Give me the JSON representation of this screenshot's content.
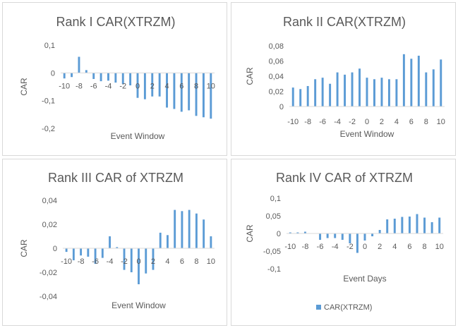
{
  "chart_data": [
    {
      "type": "bar",
      "title": "Rank I CAR(XTRZM)",
      "xlabel": "Event Window",
      "ylabel": "CAR",
      "ylim": [
        -0.2,
        0.1
      ],
      "yticks": [
        0.1,
        0,
        -0.1,
        -0.2
      ],
      "ytick_labels": [
        "0,1",
        "0",
        "-0,1",
        "-0,2"
      ],
      "xtick_labels": [
        "-10",
        "-8",
        "-6",
        "-4",
        "-2",
        "0",
        "2",
        "4",
        "6",
        "8",
        "10"
      ],
      "color": "#5b9bd5",
      "x": [
        -10,
        -9,
        -8,
        -7,
        -6,
        -5,
        -4,
        -3,
        -2,
        -1,
        0,
        1,
        2,
        3,
        4,
        5,
        6,
        7,
        8,
        9,
        10
      ],
      "values": [
        -0.02,
        -0.015,
        0.058,
        0.01,
        -0.022,
        -0.03,
        -0.028,
        -0.035,
        -0.04,
        -0.045,
        -0.09,
        -0.095,
        -0.085,
        -0.085,
        -0.125,
        -0.13,
        -0.14,
        -0.135,
        -0.155,
        -0.16,
        -0.165
      ]
    },
    {
      "type": "bar",
      "title": "Rank II CAR(XTRZM)",
      "xlabel": "Event Window",
      "ylabel": "CAR",
      "ylim": [
        0,
        0.08
      ],
      "yticks": [
        0.08,
        0.06,
        0.04,
        0.02,
        0
      ],
      "ytick_labels": [
        "0,08",
        "0,06",
        "0,04",
        "0,02",
        "0"
      ],
      "xtick_labels": [
        "-10",
        "-8",
        "-6",
        "-4",
        "-2",
        "0",
        "2",
        "4",
        "6",
        "8",
        "10"
      ],
      "color": "#5b9bd5",
      "x": [
        -10,
        -9,
        -8,
        -7,
        -6,
        -5,
        -4,
        -3,
        -2,
        -1,
        0,
        1,
        2,
        3,
        4,
        5,
        6,
        7,
        8,
        9,
        10
      ],
      "values": [
        0.025,
        0.023,
        0.027,
        0.036,
        0.038,
        0.03,
        0.045,
        0.042,
        0.045,
        0.05,
        0.038,
        0.036,
        0.038,
        0.036,
        0.036,
        0.069,
        0.063,
        0.067,
        0.045,
        0.049,
        0.062
      ]
    },
    {
      "type": "bar",
      "title": "Rank III CAR of XTRZM",
      "xlabel": "Event Window",
      "ylabel": "CAR",
      "ylim": [
        -0.04,
        0.04
      ],
      "yticks": [
        0.04,
        0.02,
        0,
        -0.02,
        -0.04
      ],
      "ytick_labels": [
        "0,04",
        "0,02",
        "0",
        "-0,02",
        "-0,04"
      ],
      "xtick_labels": [
        "-10",
        "-8",
        "-6",
        "-4",
        "-2",
        "0",
        "2",
        "4",
        "6",
        "8",
        "10"
      ],
      "color": "#5b9bd5",
      "x": [
        -10,
        -9,
        -8,
        -7,
        -6,
        -5,
        -4,
        -3,
        -2,
        -1,
        0,
        1,
        2,
        3,
        4,
        5,
        6,
        7,
        8,
        9,
        10
      ],
      "values": [
        -0.003,
        -0.01,
        -0.006,
        -0.007,
        -0.013,
        -0.008,
        0.01,
        0.001,
        -0.018,
        -0.02,
        -0.03,
        -0.021,
        -0.018,
        0.013,
        0.011,
        0.032,
        0.031,
        0.032,
        0.029,
        0.024,
        0.01
      ]
    },
    {
      "type": "bar",
      "title": "Rank IV CAR of XTRZM",
      "xlabel": "Event Days",
      "ylabel": "CAR",
      "ylim": [
        -0.1,
        0.1
      ],
      "yticks": [
        0.1,
        0.05,
        0,
        -0.05,
        -0.1
      ],
      "ytick_labels": [
        "0,1",
        "0,05",
        "0",
        "-0,05",
        "-0,1"
      ],
      "xtick_labels": [
        "-10",
        "-8",
        "-6",
        "-4",
        "-2",
        "0",
        "2",
        "4",
        "6",
        "8",
        "10"
      ],
      "color": "#5b9bd5",
      "legend": {
        "label": "CAR(XTRZM)",
        "position": "bottom-center"
      },
      "x": [
        -10,
        -9,
        -8,
        -7,
        -6,
        -5,
        -4,
        -3,
        -2,
        -1,
        0,
        1,
        2,
        3,
        4,
        5,
        6,
        7,
        8,
        9,
        10
      ],
      "values": [
        0.003,
        0.003,
        0.005,
        0.001,
        -0.018,
        -0.013,
        -0.013,
        -0.018,
        -0.028,
        -0.055,
        -0.02,
        -0.008,
        0.01,
        0.04,
        0.042,
        0.047,
        0.048,
        0.055,
        0.045,
        0.032,
        0.045
      ]
    }
  ]
}
